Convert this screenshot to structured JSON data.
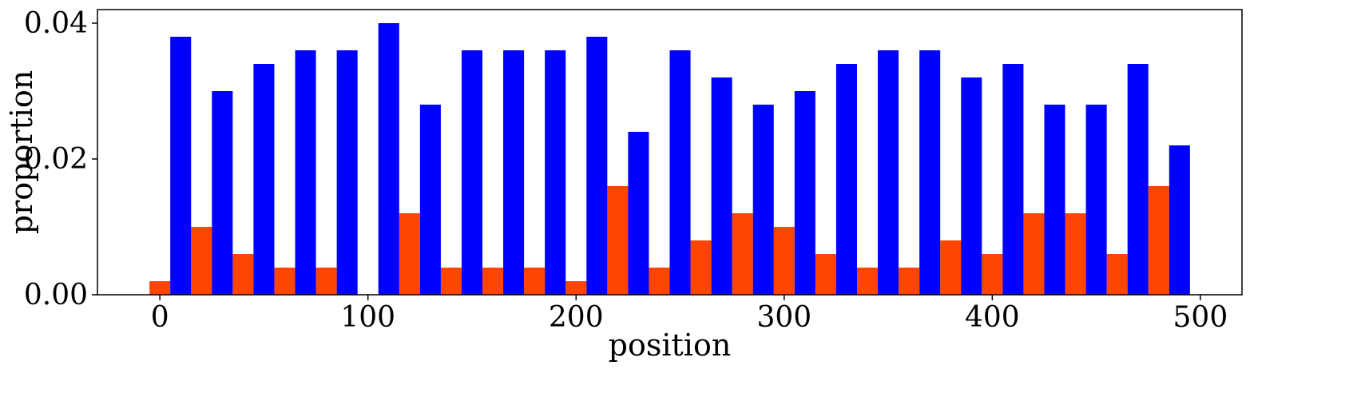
{
  "chart_data": {
    "type": "bar",
    "xlabel": "position",
    "ylabel": "proportion",
    "xlim": [
      -30,
      520
    ],
    "ylim": [
      0,
      0.042
    ],
    "xticks": [
      0,
      100,
      200,
      300,
      400,
      500
    ],
    "xtick_labels": [
      "0",
      "100",
      "200",
      "300",
      "400",
      "500"
    ],
    "yticks": [
      0,
      0.02,
      0.04
    ],
    "ytick_labels": [
      "0.00",
      "0.02",
      "0.04"
    ],
    "grid": false,
    "bar_width": 10,
    "series": [
      {
        "color": "#ff4500",
        "x": [
          0,
          20,
          40,
          60,
          80,
          100,
          120,
          140,
          160,
          180,
          200,
          220,
          240,
          260,
          280,
          300,
          320,
          340,
          360,
          380,
          400,
          420,
          440,
          460,
          480
        ],
        "values": [
          0.002,
          0.01,
          0.006,
          0.004,
          0.004,
          0.0,
          0.012,
          0.004,
          0.004,
          0.004,
          0.002,
          0.016,
          0.004,
          0.008,
          0.012,
          0.01,
          0.006,
          0.004,
          0.004,
          0.008,
          0.006,
          0.012,
          0.012,
          0.006,
          0.016
        ]
      },
      {
        "color": "#0000ff",
        "x": [
          10,
          30,
          50,
          70,
          90,
          110,
          130,
          150,
          170,
          190,
          210,
          230,
          250,
          270,
          290,
          310,
          330,
          350,
          370,
          390,
          410,
          430,
          450,
          470,
          490
        ],
        "values": [
          0.038,
          0.03,
          0.034,
          0.036,
          0.036,
          0.04,
          0.028,
          0.036,
          0.036,
          0.036,
          0.038,
          0.024,
          0.036,
          0.032,
          0.028,
          0.03,
          0.034,
          0.036,
          0.036,
          0.032,
          0.034,
          0.028,
          0.028,
          0.034,
          0.022
        ]
      }
    ]
  }
}
